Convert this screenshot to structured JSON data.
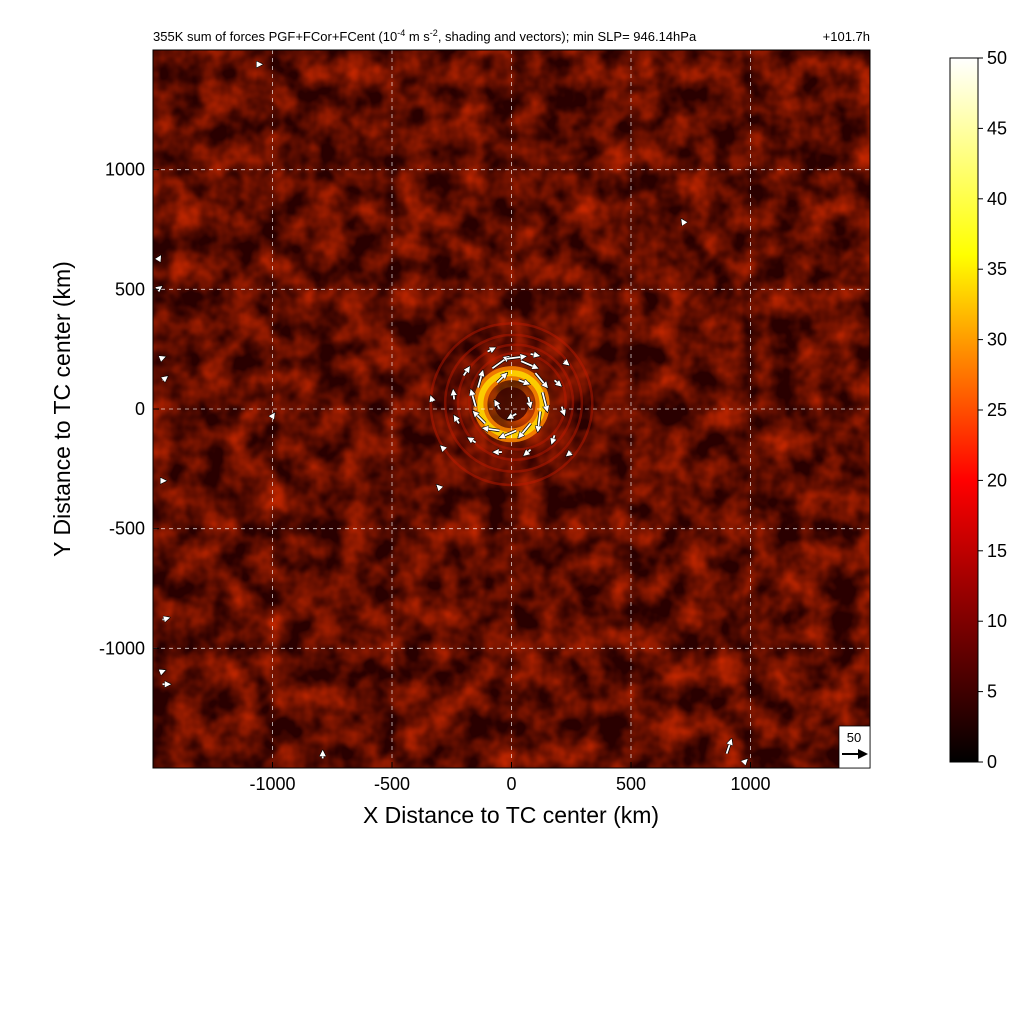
{
  "chart_data": {
    "type": "heatmap",
    "title": "355K sum of forces PGF+FCor+FCent (10",
    "title_sup": "-4",
    "title_mid": " m s",
    "title_sup2": "-2",
    "title_end": ", shading and vectors); min SLP= 946.14hPa",
    "time_label": "+101.7h",
    "xlabel": "X Distance to TC center (km)",
    "ylabel": "Y Distance to TC center (km)",
    "xlim": [
      -1500,
      1500
    ],
    "ylim": [
      -1500,
      1500
    ],
    "xticks": [
      -1000,
      -500,
      0,
      500,
      1000
    ],
    "yticks": [
      -1000,
      -500,
      0,
      500,
      1000
    ],
    "grid": true,
    "colorbar": {
      "min": 0,
      "max": 50,
      "ticks": [
        0,
        5,
        10,
        15,
        20,
        25,
        30,
        35,
        40,
        45,
        50
      ],
      "colormap": "hot",
      "stops": [
        "#000000",
        "#8b0000",
        "#ff0000",
        "#ff8c00",
        "#ffff00",
        "#ffffff"
      ]
    },
    "vector_key": {
      "label": "50",
      "value": 50
    },
    "field_description": {
      "background_level": 6,
      "ring_center": [
        0,
        20
      ],
      "ring_radius_km": 130,
      "ring_peak": 38
    },
    "vectors": [
      {
        "x": -80,
        "y": 170,
        "u": 35,
        "v": 25
      },
      {
        "x": -20,
        "y": 210,
        "u": 40,
        "v": 5
      },
      {
        "x": 40,
        "y": 200,
        "u": 35,
        "v": -15
      },
      {
        "x": 100,
        "y": 150,
        "u": 25,
        "v": -30
      },
      {
        "x": 130,
        "y": 70,
        "u": 10,
        "v": -40
      },
      {
        "x": 120,
        "y": -10,
        "u": -5,
        "v": -42
      },
      {
        "x": 80,
        "y": -60,
        "u": -25,
        "v": -30
      },
      {
        "x": 20,
        "y": -90,
        "u": -35,
        "v": -15
      },
      {
        "x": -50,
        "y": -90,
        "u": -35,
        "v": 5
      },
      {
        "x": -110,
        "y": -60,
        "u": -25,
        "v": 25
      },
      {
        "x": -150,
        "y": 10,
        "u": -10,
        "v": 35
      },
      {
        "x": -140,
        "y": 90,
        "u": 10,
        "v": 35
      },
      {
        "x": -60,
        "y": 110,
        "u": 20,
        "v": 20
      },
      {
        "x": 30,
        "y": 120,
        "u": 22,
        "v": -8
      },
      {
        "x": 70,
        "y": 50,
        "u": 5,
        "v": -22
      },
      {
        "x": 20,
        "y": -20,
        "u": -18,
        "v": -10
      },
      {
        "x": -50,
        "y": 0,
        "u": -10,
        "v": 18
      },
      {
        "x": -200,
        "y": 140,
        "u": 12,
        "v": 18
      },
      {
        "x": -240,
        "y": 40,
        "u": -2,
        "v": 20
      },
      {
        "x": -220,
        "y": -60,
        "u": -10,
        "v": 16
      },
      {
        "x": -150,
        "y": -140,
        "u": -16,
        "v": 10
      },
      {
        "x": -40,
        "y": -180,
        "u": -18,
        "v": 0
      },
      {
        "x": 80,
        "y": -170,
        "u": -14,
        "v": -12
      },
      {
        "x": 180,
        "y": -110,
        "u": -6,
        "v": -18
      },
      {
        "x": 210,
        "y": 10,
        "u": 6,
        "v": -18
      },
      {
        "x": 180,
        "y": 120,
        "u": 14,
        "v": -12
      },
      {
        "x": 80,
        "y": 230,
        "u": 18,
        "v": -4
      },
      {
        "x": -100,
        "y": 240,
        "u": 16,
        "v": 8
      },
      {
        "x": 220,
        "y": 200,
        "u": 10,
        "v": -8
      },
      {
        "x": 250,
        "y": -180,
        "u": -10,
        "v": -8
      },
      {
        "x": -330,
        "y": 30,
        "u": -4,
        "v": 12
      },
      {
        "x": -280,
        "y": -170,
        "u": -8,
        "v": 8
      },
      {
        "x": -300,
        "y": -330,
        "u": -6,
        "v": 6
      },
      {
        "x": -1480,
        "y": 620,
        "u": 6,
        "v": 10
      },
      {
        "x": -1480,
        "y": 500,
        "u": 8,
        "v": 6
      },
      {
        "x": -1470,
        "y": 210,
        "u": 10,
        "v": 4
      },
      {
        "x": -1460,
        "y": 120,
        "u": 10,
        "v": 8
      },
      {
        "x": -1470,
        "y": -300,
        "u": 12,
        "v": 0
      },
      {
        "x": -1460,
        "y": -880,
        "u": 14,
        "v": 4
      },
      {
        "x": -1460,
        "y": -1150,
        "u": 16,
        "v": 0
      },
      {
        "x": -1470,
        "y": -1100,
        "u": 10,
        "v": 4
      },
      {
        "x": -1060,
        "y": 1440,
        "u": 8,
        "v": 0
      },
      {
        "x": -790,
        "y": -1460,
        "u": 0,
        "v": 16
      },
      {
        "x": 900,
        "y": -1440,
        "u": 10,
        "v": 30
      },
      {
        "x": 970,
        "y": -1480,
        "u": 8,
        "v": 8
      },
      {
        "x": 720,
        "y": 780,
        "u": -4,
        "v": 6
      },
      {
        "x": -1000,
        "y": -30,
        "u": 4,
        "v": 6
      }
    ]
  }
}
